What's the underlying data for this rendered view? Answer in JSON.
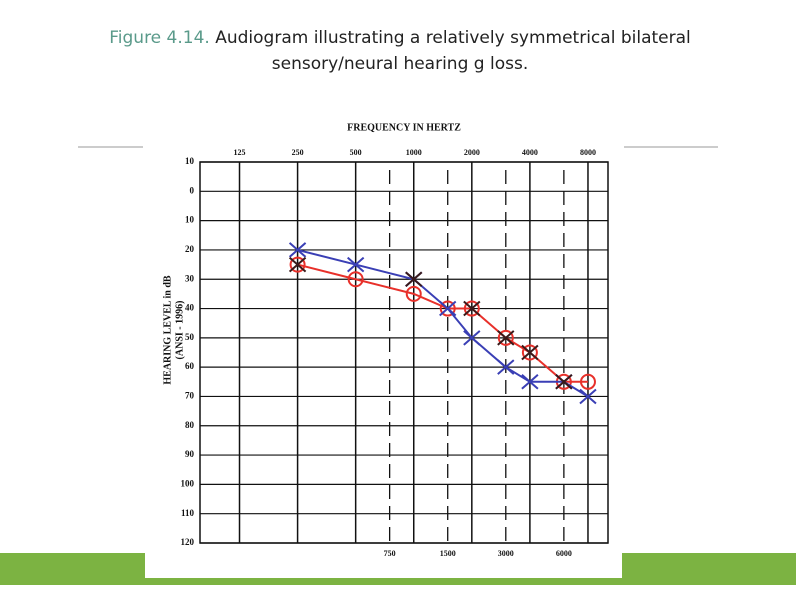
{
  "chart_data": {
    "type": "line",
    "figure_label": "Figure 4.14.",
    "title": "Audiogram illustrating a relatively symmetrical bilateral",
    "title_line2": "sensory/neural hearing g loss.",
    "x_label": "FREQUENCY IN HERTZ",
    "y_label": "HEARING LEVEL in dB",
    "y_label2": "(ANSI - 1996)",
    "xscale": "log",
    "xlim": [
      78,
      10160
    ],
    "xticks": [
      125,
      250,
      500,
      1000,
      2000,
      4000,
      8000
    ],
    "xticks_minor": [
      750,
      1500,
      3000,
      6000
    ],
    "ylim": [
      -10,
      120
    ],
    "y_inverted": true,
    "yticks": [
      {
        "value": -10,
        "label": "10"
      },
      0,
      10,
      20,
      30,
      40,
      50,
      60,
      70,
      80,
      90,
      100,
      110,
      120
    ],
    "grid": true,
    "series": [
      {
        "color": "#e8302a",
        "marker": "circle",
        "line": true,
        "x": [
          250,
          500,
          1000,
          1500,
          2000,
          3000,
          4000,
          6000,
          8000
        ],
        "values": [
          25,
          30,
          35,
          40,
          40,
          50,
          55,
          65,
          65
        ]
      },
      {
        "color": "#3a3fb5",
        "marker": "cross",
        "line": true,
        "x": [
          250,
          500,
          1000,
          1500,
          2000,
          3000,
          4000,
          6000,
          8000
        ],
        "values": [
          20,
          25,
          30,
          40,
          50,
          60,
          65,
          65,
          70
        ]
      },
      {
        "color": "#3a1a1a",
        "marker": "cross",
        "line": false,
        "x": [
          250,
          1000,
          2000,
          3000,
          4000,
          6000
        ],
        "values": [
          25,
          30,
          40,
          50,
          55,
          65
        ]
      }
    ]
  }
}
